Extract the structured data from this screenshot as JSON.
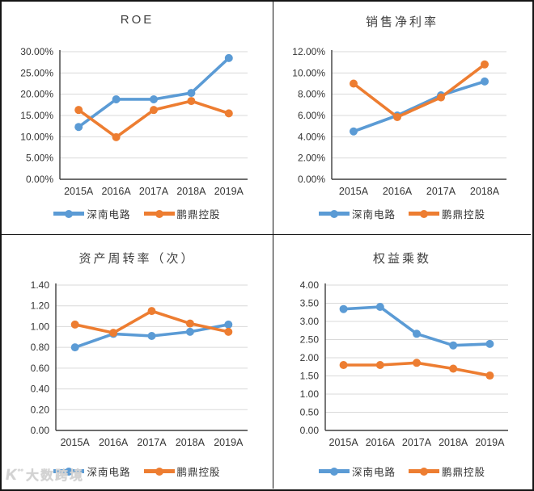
{
  "styles": {
    "series_blue": "#5B9BD5",
    "series_orange": "#ED7D31",
    "grid_color": "#D9D9D9",
    "axis_color": "#3f3f3f",
    "tick_text_color": "#333333",
    "title_text_color": "#404040",
    "border_color": "#141414",
    "watermark_color": "#d2d2d2"
  },
  "watermark": {
    "logo": "K",
    "logo_sup": "°°",
    "text": "大数跨境"
  },
  "chart_data": [
    {
      "id": "roe",
      "type": "line",
      "title": "ROE",
      "categories": [
        "2015A",
        "2016A",
        "2017A",
        "2018A",
        "2019A"
      ],
      "series": [
        {
          "name": "深南电路",
          "color": "#5B9BD5",
          "values": [
            12.3,
            18.8,
            18.8,
            20.3,
            28.5
          ]
        },
        {
          "name": "鹏鼎控股",
          "color": "#ED7D31",
          "values": [
            16.3,
            9.9,
            16.3,
            18.4,
            15.5
          ]
        }
      ],
      "ylim": [
        0,
        30
      ],
      "ytick_values": [
        0,
        5,
        10,
        15,
        20,
        25,
        30
      ],
      "ytick_labels": [
        "0.00%",
        "5.00%",
        "10.00%",
        "15.00%",
        "20.00%",
        "25.00%",
        "30.00%"
      ],
      "grid": true,
      "legend_position": "bottom"
    },
    {
      "id": "net-profit-margin",
      "type": "line",
      "title": "销售净利率",
      "categories": [
        "2015A",
        "2016A",
        "2017A",
        "2018A"
      ],
      "series": [
        {
          "name": "深南电路",
          "color": "#5B9BD5",
          "values": [
            4.5,
            6.0,
            7.9,
            9.2
          ]
        },
        {
          "name": "鹏鼎控股",
          "color": "#ED7D31",
          "values": [
            9.0,
            5.85,
            7.7,
            10.8
          ]
        }
      ],
      "ylim": [
        0,
        12
      ],
      "ytick_values": [
        0,
        2,
        4,
        6,
        8,
        10,
        12
      ],
      "ytick_labels": [
        "0.00%",
        "2.00%",
        "4.00%",
        "6.00%",
        "8.00%",
        "10.00%",
        "12.00%"
      ],
      "grid": true,
      "legend_position": "bottom"
    },
    {
      "id": "asset-turnover",
      "type": "line",
      "title": "资产周转率（次）",
      "categories": [
        "2015A",
        "2016A",
        "2017A",
        "2018A",
        "2019A"
      ],
      "series": [
        {
          "name": "深南电路",
          "color": "#5B9BD5",
          "values": [
            0.8,
            0.93,
            0.91,
            0.95,
            1.02
          ]
        },
        {
          "name": "鹏鼎控股",
          "color": "#ED7D31",
          "values": [
            1.02,
            0.94,
            1.15,
            1.03,
            0.95
          ]
        }
      ],
      "ylim": [
        0,
        1.4
      ],
      "ytick_values": [
        0,
        0.2,
        0.4,
        0.6,
        0.8,
        1.0,
        1.2,
        1.4
      ],
      "ytick_labels": [
        "0.00",
        "0.20",
        "0.40",
        "0.60",
        "0.80",
        "1.00",
        "1.20",
        "1.40"
      ],
      "grid": true,
      "legend_position": "bottom"
    },
    {
      "id": "equity-multiplier",
      "type": "line",
      "title": "权益乘数",
      "categories": [
        "2015A",
        "2016A",
        "2017A",
        "2018A",
        "2019A"
      ],
      "series": [
        {
          "name": "深南电路",
          "color": "#5B9BD5",
          "values": [
            3.34,
            3.4,
            2.66,
            2.34,
            2.38
          ]
        },
        {
          "name": "鹏鼎控股",
          "color": "#ED7D31",
          "values": [
            1.8,
            1.8,
            1.86,
            1.7,
            1.51
          ]
        }
      ],
      "ylim": [
        0,
        4
      ],
      "ytick_values": [
        0,
        0.5,
        1.0,
        1.5,
        2.0,
        2.5,
        3.0,
        3.5,
        4.0
      ],
      "ytick_labels": [
        "0.00",
        "0.50",
        "1.00",
        "1.50",
        "2.00",
        "2.50",
        "3.00",
        "3.50",
        "4.00"
      ],
      "grid": true,
      "legend_position": "bottom"
    }
  ]
}
